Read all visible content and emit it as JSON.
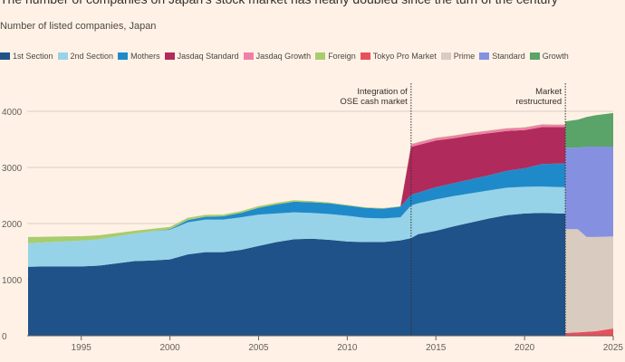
{
  "title": "The number of companies on Japan's stock market has nearly doubled since the turn of the century",
  "subtitle": "Number of listed companies, Japan",
  "chart_data": {
    "type": "area",
    "stacked": true,
    "ylim": [
      0,
      4000
    ],
    "xlim": [
      1992,
      2025
    ],
    "yticks": [
      "0",
      "1000",
      "2000",
      "3000",
      "4000"
    ],
    "xticks": [
      "1995",
      "2000",
      "2005",
      "2010",
      "2015",
      "2020",
      "2025"
    ],
    "grid": true,
    "legend_position": "top",
    "annotations": [
      {
        "x": 2013.6,
        "text_lines": [
          "Integration of",
          "OSE cash market"
        ]
      },
      {
        "x": 2022.3,
        "text_lines": [
          "Market",
          "restructured"
        ]
      }
    ],
    "x": [
      1992,
      1993,
      1994,
      1995,
      1996,
      1997,
      1998,
      1999,
      2000,
      2001,
      2002,
      2003,
      2004,
      2005,
      2006,
      2007,
      2008,
      2009,
      2010,
      2011,
      2012,
      2013,
      2013.6,
      2014,
      2015,
      2016,
      2017,
      2018,
      2019,
      2020,
      2021,
      2022,
      2022.3,
      2022.3,
      2023,
      2023.5,
      2024,
      2025
    ],
    "legend_order": [
      "1st Section",
      "2nd Section",
      "Mothers",
      "Jasdaq Standard",
      "Jasdaq Growth",
      "Foreign",
      "Tokyo Pro Market",
      "Prime",
      "Standard",
      "Growth"
    ],
    "series": [
      {
        "name": "Tokyo Pro Market",
        "color": "#e8505b",
        "values": [
          0,
          0,
          0,
          0,
          0,
          0,
          0,
          0,
          0,
          0,
          0,
          0,
          0,
          0,
          0,
          0,
          0,
          0,
          0,
          0,
          0,
          0,
          0,
          0,
          0,
          0,
          0,
          0,
          0,
          0,
          0,
          0,
          0,
          50,
          60,
          70,
          80,
          130
        ]
      },
      {
        "name": "1st Section",
        "color": "#1f5289",
        "values": [
          1230,
          1235,
          1235,
          1235,
          1250,
          1290,
          1330,
          1340,
          1360,
          1450,
          1490,
          1490,
          1530,
          1600,
          1670,
          1720,
          1730,
          1710,
          1680,
          1670,
          1670,
          1700,
          1740,
          1810,
          1870,
          1950,
          2020,
          2090,
          2150,
          2180,
          2190,
          2180,
          2180,
          0,
          0,
          0,
          0,
          0
        ]
      },
      {
        "name": "2nd Section",
        "color": "#96d3e8",
        "values": [
          420,
          430,
          445,
          460,
          470,
          480,
          490,
          520,
          530,
          570,
          580,
          580,
          580,
          560,
          510,
          480,
          460,
          460,
          460,
          430,
          420,
          410,
          580,
          550,
          560,
          540,
          520,
          500,
          490,
          475,
          470,
          470,
          470,
          0,
          0,
          0,
          0,
          0
        ]
      },
      {
        "name": "Mothers",
        "color": "#1f8ac9",
        "values": [
          0,
          0,
          0,
          0,
          0,
          0,
          0,
          0,
          10,
          40,
          50,
          60,
          80,
          120,
          160,
          190,
          190,
          190,
          180,
          180,
          175,
          190,
          195,
          190,
          220,
          230,
          250,
          270,
          300,
          330,
          400,
          420,
          420,
          0,
          0,
          0,
          0,
          0
        ]
      },
      {
        "name": "Jasdaq Standard",
        "color": "#b12a5c",
        "values": [
          0,
          0,
          0,
          0,
          0,
          0,
          0,
          0,
          0,
          0,
          0,
          0,
          0,
          0,
          0,
          0,
          0,
          0,
          0,
          0,
          0,
          0,
          850,
          850,
          830,
          800,
          780,
          750,
          710,
          680,
          660,
          650,
          650,
          0,
          0,
          0,
          0,
          0
        ]
      },
      {
        "name": "Jasdaq Growth",
        "color": "#f07fa8",
        "values": [
          0,
          0,
          0,
          0,
          0,
          0,
          0,
          0,
          0,
          0,
          0,
          0,
          0,
          0,
          0,
          0,
          0,
          0,
          0,
          0,
          0,
          0,
          45,
          45,
          45,
          45,
          45,
          45,
          45,
          45,
          45,
          40,
          40,
          0,
          0,
          0,
          0,
          0
        ]
      },
      {
        "name": "Foreign",
        "color": "#a8cc6e",
        "values": [
          110,
          100,
          90,
          80,
          70,
          60,
          50,
          45,
          40,
          40,
          35,
          30,
          30,
          30,
          28,
          25,
          20,
          15,
          12,
          10,
          10,
          8,
          8,
          7,
          6,
          6,
          5,
          5,
          5,
          5,
          5,
          5,
          5,
          0,
          0,
          0,
          0,
          0
        ]
      },
      {
        "name": "Prime",
        "color": "#d9cbbf",
        "values": [
          0,
          0,
          0,
          0,
          0,
          0,
          0,
          0,
          0,
          0,
          0,
          0,
          0,
          0,
          0,
          0,
          0,
          0,
          0,
          0,
          0,
          0,
          0,
          0,
          0,
          0,
          0,
          0,
          0,
          0,
          0,
          0,
          0,
          1850,
          1840,
          1690,
          1680,
          1640
        ]
      },
      {
        "name": "Standard",
        "color": "#8591e0",
        "values": [
          0,
          0,
          0,
          0,
          0,
          0,
          0,
          0,
          0,
          0,
          0,
          0,
          0,
          0,
          0,
          0,
          0,
          0,
          0,
          0,
          0,
          0,
          0,
          0,
          0,
          0,
          0,
          0,
          0,
          0,
          0,
          0,
          0,
          1450,
          1450,
          1610,
          1610,
          1600
        ]
      },
      {
        "name": "Growth",
        "color": "#5aa469",
        "values": [
          0,
          0,
          0,
          0,
          0,
          0,
          0,
          0,
          0,
          0,
          0,
          0,
          0,
          0,
          0,
          0,
          0,
          0,
          0,
          0,
          0,
          0,
          0,
          0,
          0,
          0,
          0,
          0,
          0,
          0,
          0,
          0,
          0,
          470,
          500,
          530,
          560,
          600
        ]
      }
    ]
  }
}
